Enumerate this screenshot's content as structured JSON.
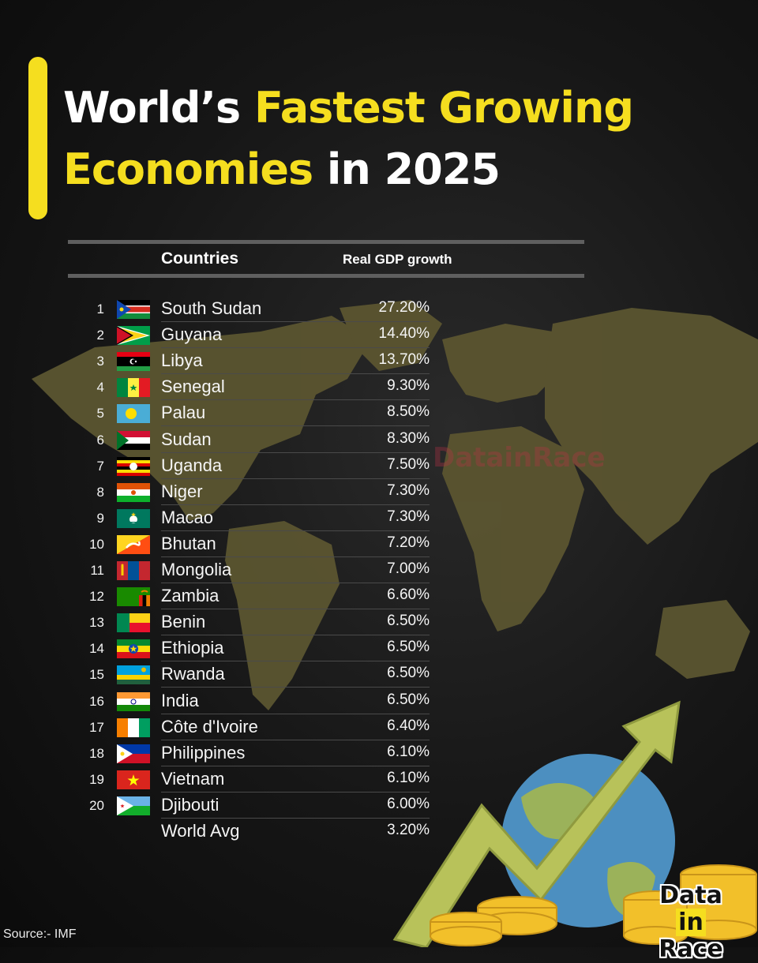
{
  "title": {
    "part1": "World’s ",
    "highlight1": "Fastest Growing",
    "highlight2": "Economies",
    "part2": " in 2025"
  },
  "table": {
    "header_country": "Countries",
    "header_value": "Real GDP growth",
    "rows": [
      {
        "rank": "1",
        "country": "South Sudan",
        "value": "27.20%",
        "flag": "south-sudan"
      },
      {
        "rank": "2",
        "country": "Guyana",
        "value": "14.40%",
        "flag": "guyana"
      },
      {
        "rank": "3",
        "country": "Libya",
        "value": "13.70%",
        "flag": "libya"
      },
      {
        "rank": "4",
        "country": "Senegal",
        "value": "9.30%",
        "flag": "senegal"
      },
      {
        "rank": "5",
        "country": "Palau",
        "value": "8.50%",
        "flag": "palau"
      },
      {
        "rank": "6",
        "country": "Sudan",
        "value": "8.30%",
        "flag": "sudan"
      },
      {
        "rank": "7",
        "country": "Uganda",
        "value": "7.50%",
        "flag": "uganda"
      },
      {
        "rank": "8",
        "country": "Niger",
        "value": "7.30%",
        "flag": "niger"
      },
      {
        "rank": "9",
        "country": "Macao",
        "value": "7.30%",
        "flag": "macao"
      },
      {
        "rank": "10",
        "country": "Bhutan",
        "value": "7.20%",
        "flag": "bhutan"
      },
      {
        "rank": "11",
        "country": "Mongolia",
        "value": "7.00%",
        "flag": "mongolia"
      },
      {
        "rank": "12",
        "country": "Zambia",
        "value": "6.60%",
        "flag": "zambia"
      },
      {
        "rank": "13",
        "country": "Benin",
        "value": "6.50%",
        "flag": "benin"
      },
      {
        "rank": "14",
        "country": "Ethiopia",
        "value": "6.50%",
        "flag": "ethiopia"
      },
      {
        "rank": "15",
        "country": "Rwanda",
        "value": "6.50%",
        "flag": "rwanda"
      },
      {
        "rank": "16",
        "country": "India",
        "value": "6.50%",
        "flag": "india"
      },
      {
        "rank": "17",
        "country": "Côte d'Ivoire",
        "value": "6.40%",
        "flag": "cote-divoire"
      },
      {
        "rank": "18",
        "country": "Philippines",
        "value": "6.10%",
        "flag": "philippines"
      },
      {
        "rank": "19",
        "country": "Vietnam",
        "value": "6.10%",
        "flag": "vietnam"
      },
      {
        "rank": "20",
        "country": "Djibouti",
        "value": "6.00%",
        "flag": "djibouti"
      },
      {
        "rank": "",
        "country": "World Avg",
        "value": "3.20%",
        "flag": ""
      }
    ]
  },
  "watermark": "DatainRace",
  "source": "Source:- IMF",
  "logo": {
    "word1": "Data",
    "word2": "in",
    "word3": "Race"
  },
  "colors": {
    "accent": "#f5de1f",
    "background": "#161616",
    "map": "#5b5530",
    "arrow": "#b8c25a"
  }
}
